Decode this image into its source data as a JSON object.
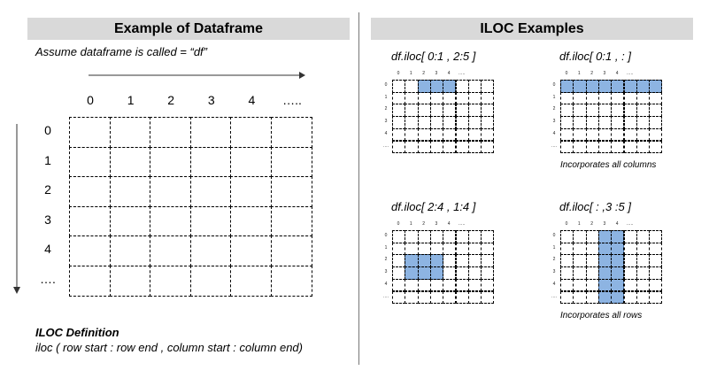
{
  "left": {
    "header": "Example of Dataframe",
    "subtitle": "Assume dataframe is called = “df”",
    "col_labels": [
      "0",
      "1",
      "2",
      "3",
      "4",
      "….."
    ],
    "row_labels": [
      "0",
      "1",
      "2",
      "3",
      "4",
      "…."
    ],
    "definition_title": "ILOC Definition",
    "definition_text": "iloc ( row start : row end , column start : column end)"
  },
  "right": {
    "header": "ILOC Examples",
    "mini_col_labels": [
      "0",
      "1",
      "2",
      "3",
      "4",
      "….."
    ],
    "mini_row_labels": [
      "0",
      "1",
      "2",
      "3",
      "4",
      "…."
    ],
    "examples": [
      {
        "title": "df.iloc[ 0:1 , 2:5 ]",
        "note": "",
        "highlight": {
          "rows": [
            0,
            1
          ],
          "cols": [
            2,
            5
          ]
        }
      },
      {
        "title": "df.iloc[ 0:1 , : ]",
        "note": "Incorporates all columns",
        "highlight": {
          "rows": [
            0,
            1
          ],
          "cols": [
            0,
            8
          ]
        }
      },
      {
        "title": "df.iloc[ 2:4 , 1:4 ]",
        "note": "",
        "highlight": {
          "rows": [
            2,
            4
          ],
          "cols": [
            1,
            4
          ]
        }
      },
      {
        "title": "df.iloc[ : ,3 :5 ]",
        "note": "Incorporates all rows",
        "highlight": {
          "rows": [
            0,
            6
          ],
          "cols": [
            3,
            5
          ]
        }
      }
    ]
  },
  "colors": {
    "header_bg": "#d9d9d9",
    "highlight": "#8db4e2",
    "highlight_border": "#4a78b0"
  }
}
